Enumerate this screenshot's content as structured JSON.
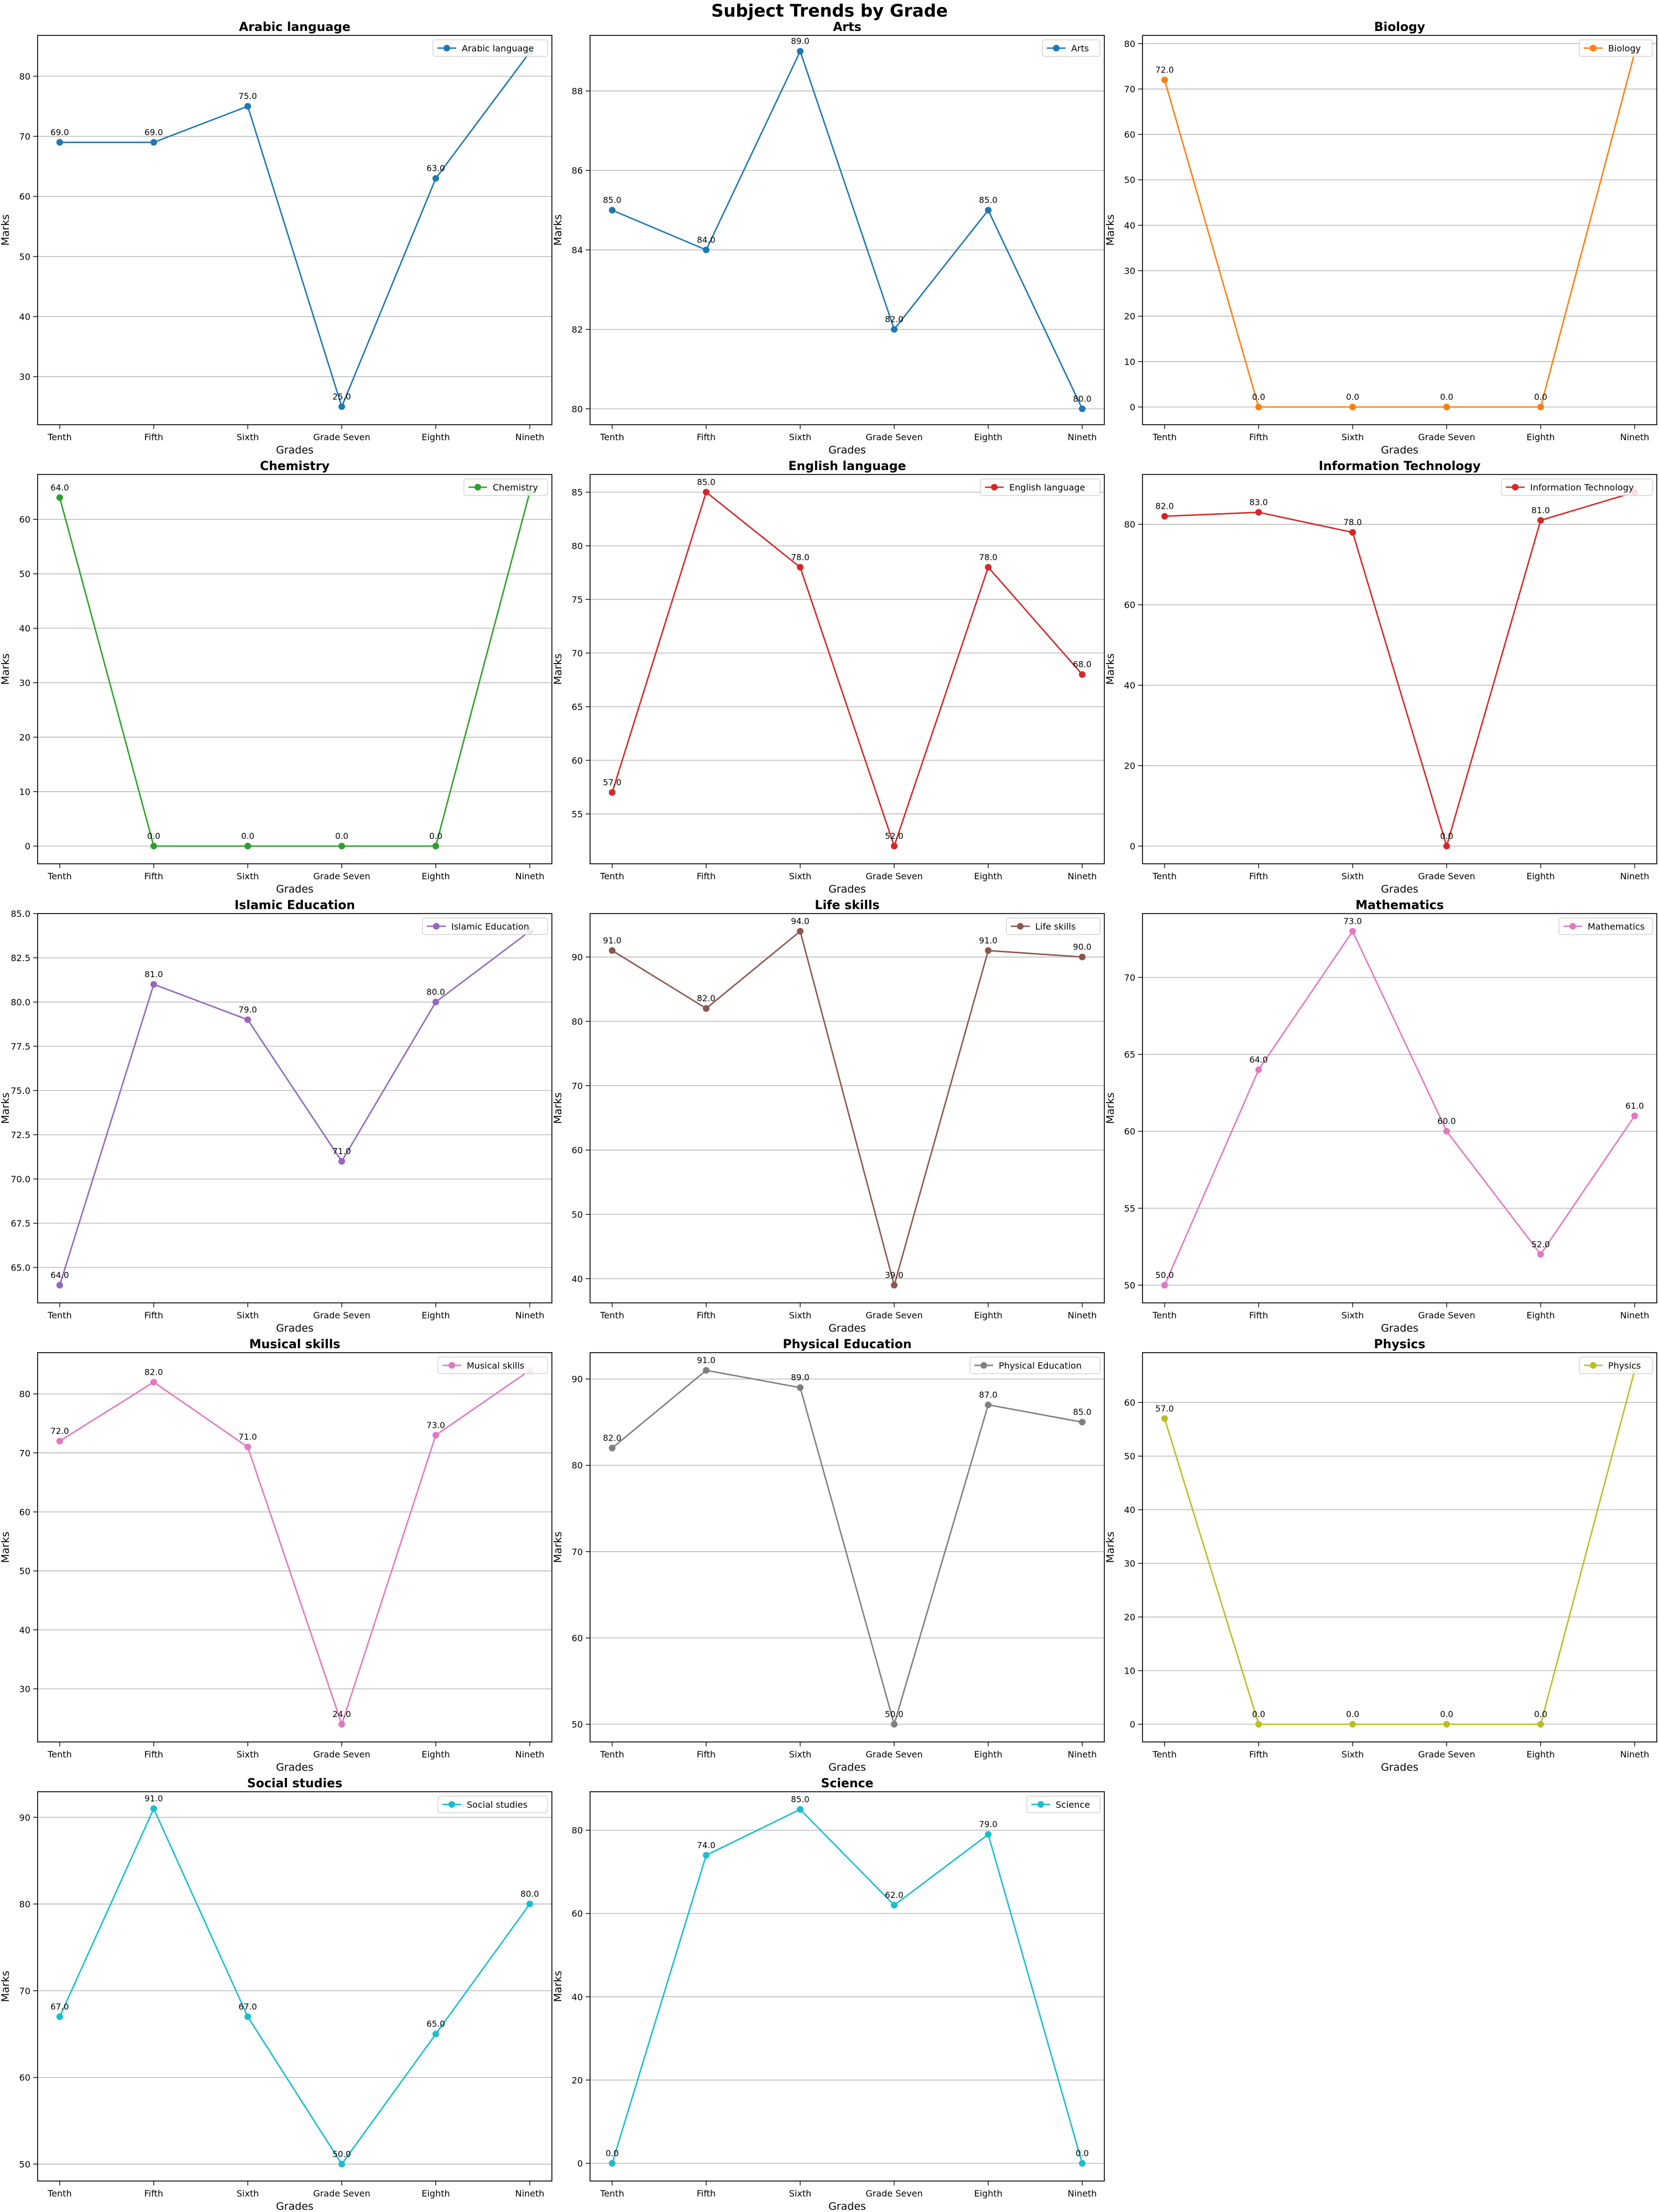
{
  "title": "Subject Trends by Grade",
  "chart_data": [
    {
      "type": "line",
      "title": "Arabic language",
      "xlabel": "Grades",
      "ylabel": "Marks",
      "legend": "top-right",
      "grid": "y",
      "categories": [
        "Tenth",
        "Fifth",
        "Sixth",
        "Grade Seven",
        "Eighth",
        "Nineth"
      ],
      "yticks": [
        30,
        40,
        50,
        60,
        70,
        80
      ],
      "ylim": [
        22.0,
        86.8
      ],
      "color": "#1f77b4",
      "series": [
        {
          "name": "Arabic language",
          "values": [
            69,
            69,
            75,
            25,
            63,
            84
          ]
        }
      ],
      "labels": [
        "69.0",
        "69.0",
        "75.0",
        "25.0",
        "63.0",
        ""
      ]
    },
    {
      "type": "line",
      "title": "Arts",
      "xlabel": "Grades",
      "ylabel": "Marks",
      "legend": "top-right",
      "grid": "y",
      "categories": [
        "Tenth",
        "Fifth",
        "Sixth",
        "Grade Seven",
        "Eighth",
        "Nineth"
      ],
      "yticks": [
        80,
        82,
        84,
        86,
        88
      ],
      "ylim": [
        79.6,
        89.4
      ],
      "color": "#1f77b4",
      "series": [
        {
          "name": "Arts",
          "values": [
            85,
            84,
            89,
            82,
            85,
            80
          ]
        }
      ],
      "labels": [
        "85.0",
        "84.0",
        "89.0",
        "82.0",
        "85.0",
        "80.0"
      ]
    },
    {
      "type": "line",
      "title": "Biology",
      "xlabel": "Grades",
      "ylabel": "Marks",
      "legend": "top-right",
      "grid": "y",
      "categories": [
        "Tenth",
        "Fifth",
        "Sixth",
        "Grade Seven",
        "Eighth",
        "Nineth"
      ],
      "yticks": [
        0,
        10,
        20,
        30,
        40,
        50,
        60,
        70,
        80
      ],
      "ylim": [
        -3.9,
        81.8
      ],
      "color": "#ff7f0e",
      "series": [
        {
          "name": "Biology",
          "values": [
            72,
            0,
            0,
            0,
            0,
            78
          ]
        }
      ],
      "labels": [
        "72.0",
        "0.0",
        "0.0",
        "0.0",
        "0.0",
        ""
      ]
    },
    {
      "type": "line",
      "title": "Chemistry",
      "xlabel": "Grades",
      "ylabel": "Marks",
      "legend": "top-right",
      "grid": "y",
      "categories": [
        "Tenth",
        "Fifth",
        "Sixth",
        "Grade Seven",
        "Eighth",
        "Nineth"
      ],
      "yticks": [
        0,
        10,
        20,
        30,
        40,
        50,
        60
      ],
      "ylim": [
        -3.25,
        68.25
      ],
      "color": "#2ca02c",
      "series": [
        {
          "name": "Chemistry",
          "values": [
            64,
            0,
            0,
            0,
            0,
            65
          ]
        }
      ],
      "labels": [
        "64.0",
        "0.0",
        "0.0",
        "0.0",
        "0.0",
        ""
      ]
    },
    {
      "type": "line",
      "title": "English language",
      "xlabel": "Grades",
      "ylabel": "Marks",
      "legend": "top-right",
      "grid": "y",
      "categories": [
        "Tenth",
        "Fifth",
        "Sixth",
        "Grade Seven",
        "Eighth",
        "Nineth"
      ],
      "yticks": [
        55,
        60,
        65,
        70,
        75,
        80,
        85
      ],
      "ylim": [
        50.35,
        86.65
      ],
      "color": "#d62728",
      "series": [
        {
          "name": "English language",
          "values": [
            57,
            85,
            78,
            52,
            78,
            68
          ]
        }
      ],
      "labels": [
        "57.0",
        "85.0",
        "78.0",
        "52.0",
        "78.0",
        "68.0"
      ]
    },
    {
      "type": "line",
      "title": "Information Technology",
      "xlabel": "Grades",
      "ylabel": "Marks",
      "legend": "top-right",
      "grid": "y",
      "categories": [
        "Tenth",
        "Fifth",
        "Sixth",
        "Grade Seven",
        "Eighth",
        "Nineth"
      ],
      "yticks": [
        0,
        20,
        40,
        60,
        80
      ],
      "ylim": [
        -4.4,
        92.4
      ],
      "color": "#d62728",
      "series": [
        {
          "name": "Information Technology",
          "values": [
            82,
            83,
            78,
            0,
            81,
            88
          ]
        }
      ],
      "labels": [
        "82.0",
        "83.0",
        "78.0",
        "0.0",
        "81.0",
        ""
      ]
    },
    {
      "type": "line",
      "title": "Islamic Education",
      "xlabel": "Grades",
      "ylabel": "Marks",
      "legend": "top-right",
      "grid": "y",
      "categories": [
        "Tenth",
        "Fifth",
        "Sixth",
        "Grade Seven",
        "Eighth",
        "Nineth"
      ],
      "yticks": [
        65.0,
        67.5,
        70.0,
        72.5,
        75.0,
        77.5,
        80.0,
        82.5,
        85.0
      ],
      "ylim": [
        63.0,
        85.0
      ],
      "color": "#9467bd",
      "series": [
        {
          "name": "Islamic Education",
          "values": [
            64,
            81,
            79,
            71,
            80,
            84
          ]
        }
      ],
      "labels": [
        "64.0",
        "81.0",
        "79.0",
        "71.0",
        "80.0",
        ""
      ]
    },
    {
      "type": "line",
      "title": "Life skills",
      "xlabel": "Grades",
      "ylabel": "Marks",
      "legend": "top-right",
      "grid": "y",
      "categories": [
        "Tenth",
        "Fifth",
        "Sixth",
        "Grade Seven",
        "Eighth",
        "Nineth"
      ],
      "yticks": [
        40,
        50,
        60,
        70,
        80,
        90
      ],
      "ylim": [
        36.25,
        96.75
      ],
      "color": "#8c564b",
      "series": [
        {
          "name": "Life skills",
          "values": [
            91,
            82,
            94,
            39,
            91,
            90
          ]
        }
      ],
      "labels": [
        "91.0",
        "82.0",
        "94.0",
        "39.0",
        "91.0",
        "90.0"
      ]
    },
    {
      "type": "line",
      "title": "Mathematics",
      "xlabel": "Grades",
      "ylabel": "Marks",
      "legend": "top-right",
      "grid": "y",
      "categories": [
        "Tenth",
        "Fifth",
        "Sixth",
        "Grade Seven",
        "Eighth",
        "Nineth"
      ],
      "yticks": [
        50,
        55,
        60,
        65,
        70
      ],
      "ylim": [
        48.85,
        74.15
      ],
      "color": "#e377c2",
      "series": [
        {
          "name": "Mathematics",
          "values": [
            50,
            64,
            73,
            60,
            52,
            61
          ]
        }
      ],
      "labels": [
        "50.0",
        "64.0",
        "73.0",
        "60.0",
        "52.0",
        "61.0"
      ]
    },
    {
      "type": "line",
      "title": "Musical skills",
      "xlabel": "Grades",
      "ylabel": "Marks",
      "legend": "top-right",
      "grid": "y",
      "categories": [
        "Tenth",
        "Fifth",
        "Sixth",
        "Grade Seven",
        "Eighth",
        "Nineth"
      ],
      "yticks": [
        30,
        40,
        50,
        60,
        70,
        80
      ],
      "ylim": [
        21.0,
        87.0
      ],
      "color": "#e377c2",
      "series": [
        {
          "name": "Musical skills",
          "values": [
            72,
            82,
            71,
            24,
            73,
            84
          ]
        }
      ],
      "labels": [
        "72.0",
        "82.0",
        "71.0",
        "24.0",
        "73.0",
        ""
      ]
    },
    {
      "type": "line",
      "title": "Physical Education",
      "xlabel": "Grades",
      "ylabel": "Marks",
      "legend": "top-right",
      "grid": "y",
      "categories": [
        "Tenth",
        "Fifth",
        "Sixth",
        "Grade Seven",
        "Eighth",
        "Nineth"
      ],
      "yticks": [
        50,
        60,
        70,
        80,
        90
      ],
      "ylim": [
        47.95,
        93.05
      ],
      "color": "#7f7f7f",
      "series": [
        {
          "name": "Physical Education",
          "values": [
            82,
            91,
            89,
            50,
            87,
            85
          ]
        }
      ],
      "labels": [
        "82.0",
        "91.0",
        "89.0",
        "50.0",
        "87.0",
        "85.0"
      ]
    },
    {
      "type": "line",
      "title": "Physics",
      "xlabel": "Grades",
      "ylabel": "Marks",
      "legend": "top-right",
      "grid": "y",
      "categories": [
        "Tenth",
        "Fifth",
        "Sixth",
        "Grade Seven",
        "Eighth",
        "Nineth"
      ],
      "yticks": [
        0,
        10,
        20,
        30,
        40,
        50,
        60
      ],
      "ylim": [
        -3.3,
        69.3
      ],
      "color": "#bcbd22",
      "series": [
        {
          "name": "Physics",
          "values": [
            57,
            0,
            0,
            0,
            0,
            66
          ]
        }
      ],
      "labels": [
        "57.0",
        "0.0",
        "0.0",
        "0.0",
        "0.0",
        ""
      ]
    },
    {
      "type": "line",
      "title": "Social studies",
      "xlabel": "Grades",
      "ylabel": "Marks",
      "legend": "top-right",
      "grid": "y",
      "categories": [
        "Tenth",
        "Fifth",
        "Sixth",
        "Grade Seven",
        "Eighth",
        "Nineth"
      ],
      "yticks": [
        50,
        60,
        70,
        80,
        90
      ],
      "ylim": [
        48.05,
        92.95
      ],
      "color": "#17becf",
      "series": [
        {
          "name": "Social studies",
          "values": [
            67,
            91,
            67,
            50,
            65,
            80
          ]
        }
      ],
      "labels": [
        "67.0",
        "91.0",
        "67.0",
        "50.0",
        "65.0",
        "80.0"
      ]
    },
    {
      "type": "line",
      "title": "Science",
      "xlabel": "Grades",
      "ylabel": "Marks",
      "legend": "top-right",
      "grid": "y",
      "categories": [
        "Tenth",
        "Fifth",
        "Sixth",
        "Grade Seven",
        "Eighth",
        "Nineth"
      ],
      "yticks": [
        0,
        20,
        40,
        60,
        80
      ],
      "ylim": [
        -4.25,
        89.25
      ],
      "color": "#17becf",
      "series": [
        {
          "name": "Science",
          "values": [
            0,
            74,
            85,
            62,
            79,
            0
          ]
        }
      ],
      "labels": [
        "0.0",
        "74.0",
        "85.0",
        "62.0",
        "79.0",
        "0.0"
      ]
    }
  ]
}
